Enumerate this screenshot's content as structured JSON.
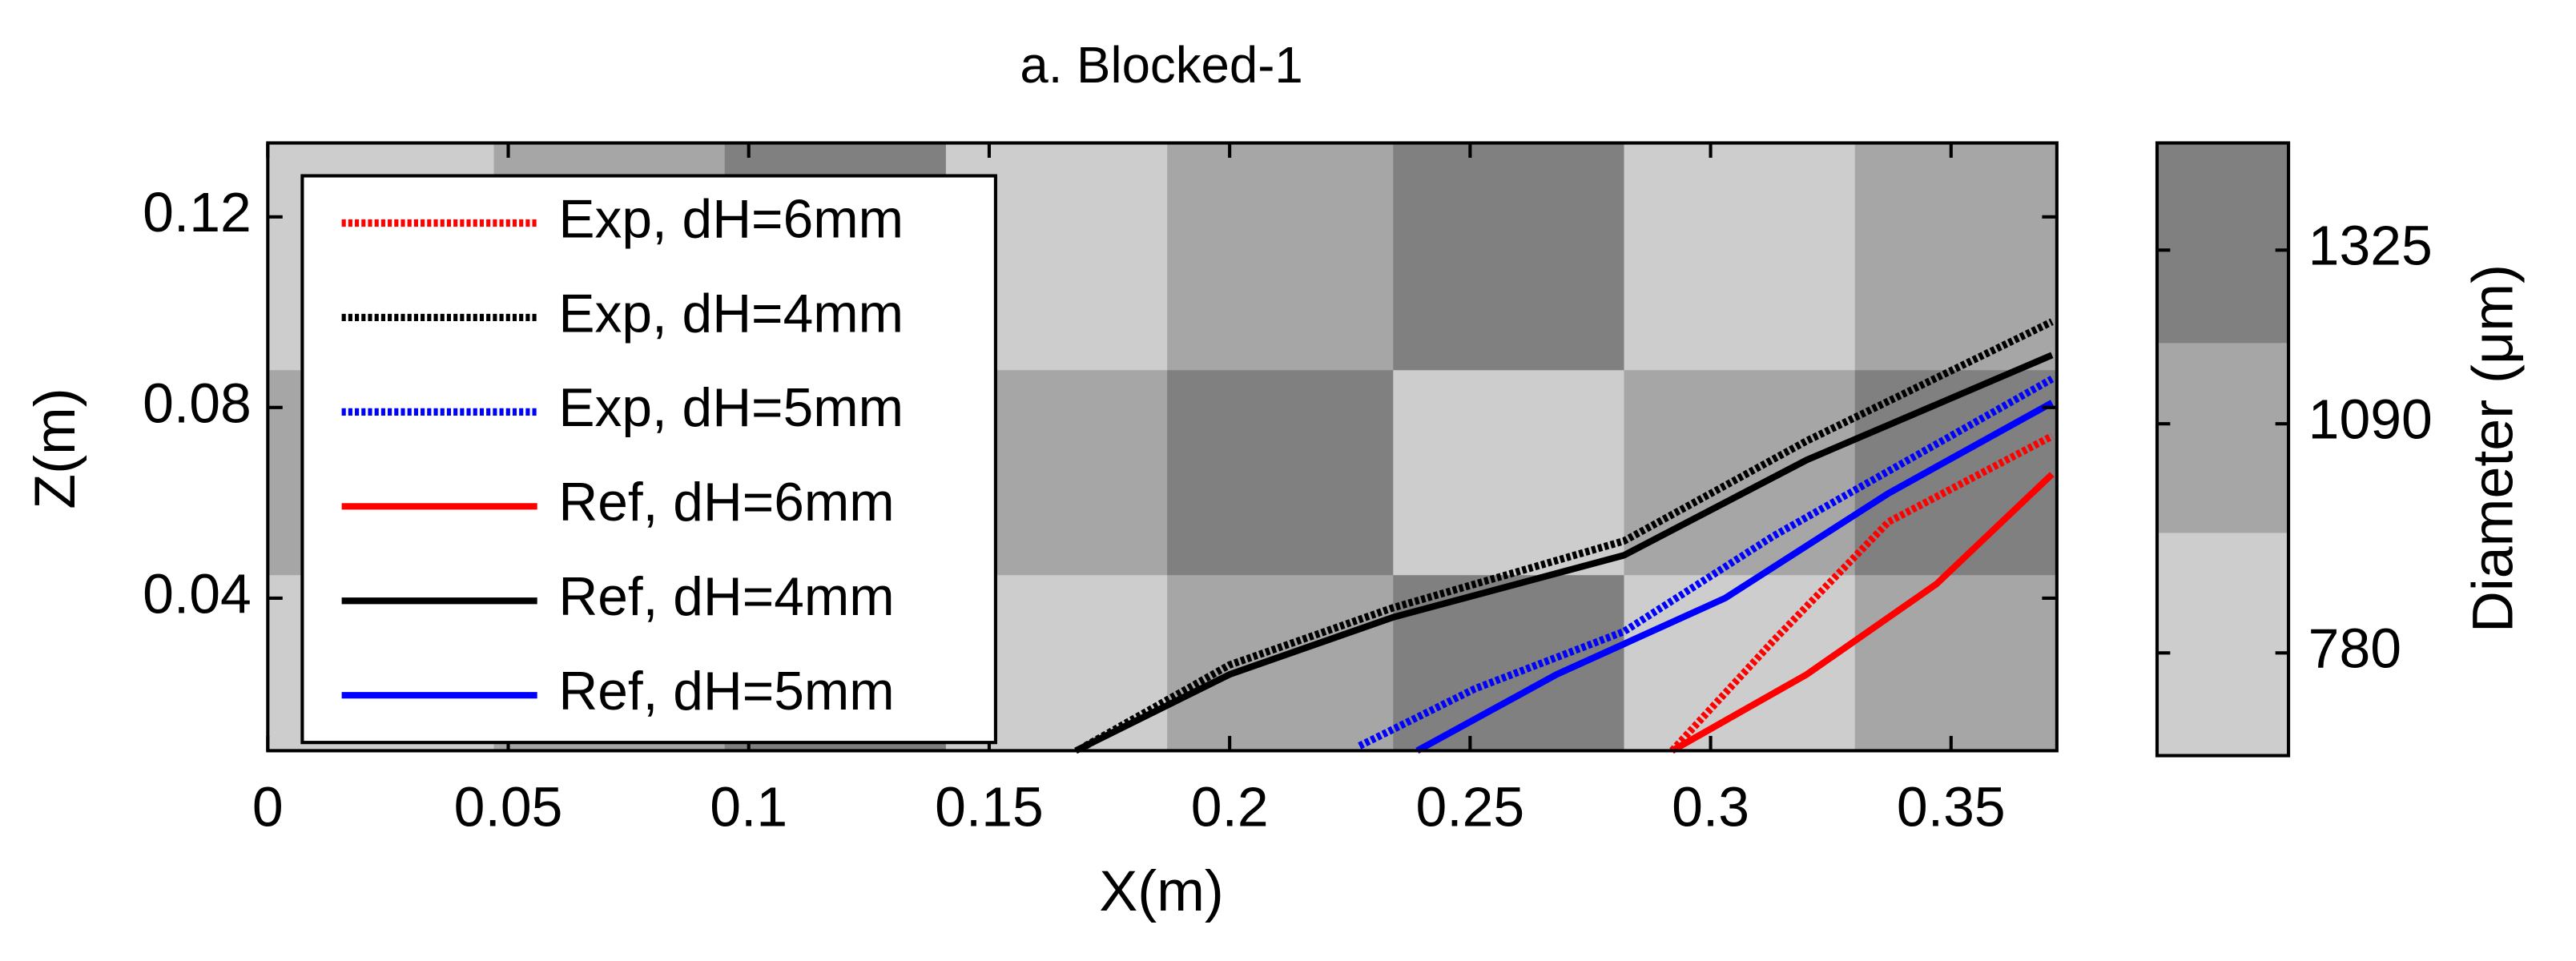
{
  "chart_data": {
    "type": "line",
    "title": "a. Blocked-1",
    "xlabel": "X(m)",
    "ylabel": "Z(m)",
    "xlim": [
      0,
      0.372
    ],
    "ylim": [
      0.008,
      0.1355
    ],
    "xticks": [
      0,
      0.05,
      0.1,
      0.15,
      0.2,
      0.25,
      0.3,
      0.35
    ],
    "yticks": [
      0.04,
      0.08,
      0.12
    ],
    "legend": "upper left",
    "series": [
      {
        "name": "Exp, dH=6mm",
        "color": "#ff0000",
        "style": "dotted",
        "x": [
          0.292,
          0.313,
          0.337,
          0.371
        ],
        "values": [
          0.008,
          0.031,
          0.056,
          0.074
        ]
      },
      {
        "name": "Exp, dH=4mm",
        "color": "#000000",
        "style": "dotted",
        "x": [
          0.17,
          0.2,
          0.234,
          0.282,
          0.32,
          0.371
        ],
        "values": [
          0.009,
          0.026,
          0.038,
          0.052,
          0.073,
          0.098
        ]
      },
      {
        "name": "Exp, dH=5mm",
        "color": "#0000ff",
        "style": "dotted",
        "x": [
          0.227,
          0.251,
          0.282,
          0.313,
          0.371
        ],
        "values": [
          0.009,
          0.021,
          0.033,
          0.053,
          0.086
        ]
      },
      {
        "name": "Ref, dH=6mm",
        "color": "#ff0000",
        "style": "solid",
        "x": [
          0.292,
          0.32,
          0.347,
          0.371
        ],
        "values": [
          0.008,
          0.024,
          0.043,
          0.066
        ]
      },
      {
        "name": "Ref, dH=4mm",
        "color": "#000000",
        "style": "solid",
        "x": [
          0.168,
          0.2,
          0.234,
          0.282,
          0.32,
          0.371
        ],
        "values": [
          0.008,
          0.024,
          0.036,
          0.049,
          0.069,
          0.091
        ]
      },
      {
        "name": "Ref, dH=5mm",
        "color": "#0000ff",
        "style": "solid",
        "x": [
          0.239,
          0.268,
          0.303,
          0.337,
          0.371
        ],
        "values": [
          0.008,
          0.024,
          0.04,
          0.062,
          0.081
        ]
      }
    ],
    "background": {
      "x_edges": [
        0,
        0.047,
        0.095,
        0.141,
        0.187,
        0.234,
        0.282,
        0.33,
        0.372
      ],
      "z_edges": [
        0.008,
        0.045,
        0.088,
        0.1355
      ],
      "values": [
        [
          780,
          1090,
          1325,
          780,
          1090,
          1325,
          780,
          1090
        ],
        [
          1090,
          1325,
          780,
          1090,
          1325,
          780,
          1090,
          1325
        ],
        [
          780,
          1090,
          1325,
          780,
          1090,
          1325,
          780,
          1090
        ]
      ]
    },
    "colorbar": {
      "label": "Diameter (μm)",
      "lim": [
        641,
        1470
      ],
      "ticks": [
        780,
        1090,
        1325
      ],
      "levels": [
        641,
        943,
        1200,
        1470
      ],
      "colors": [
        "#cdcdcd",
        "#a6a6a6",
        "#808080"
      ]
    }
  }
}
